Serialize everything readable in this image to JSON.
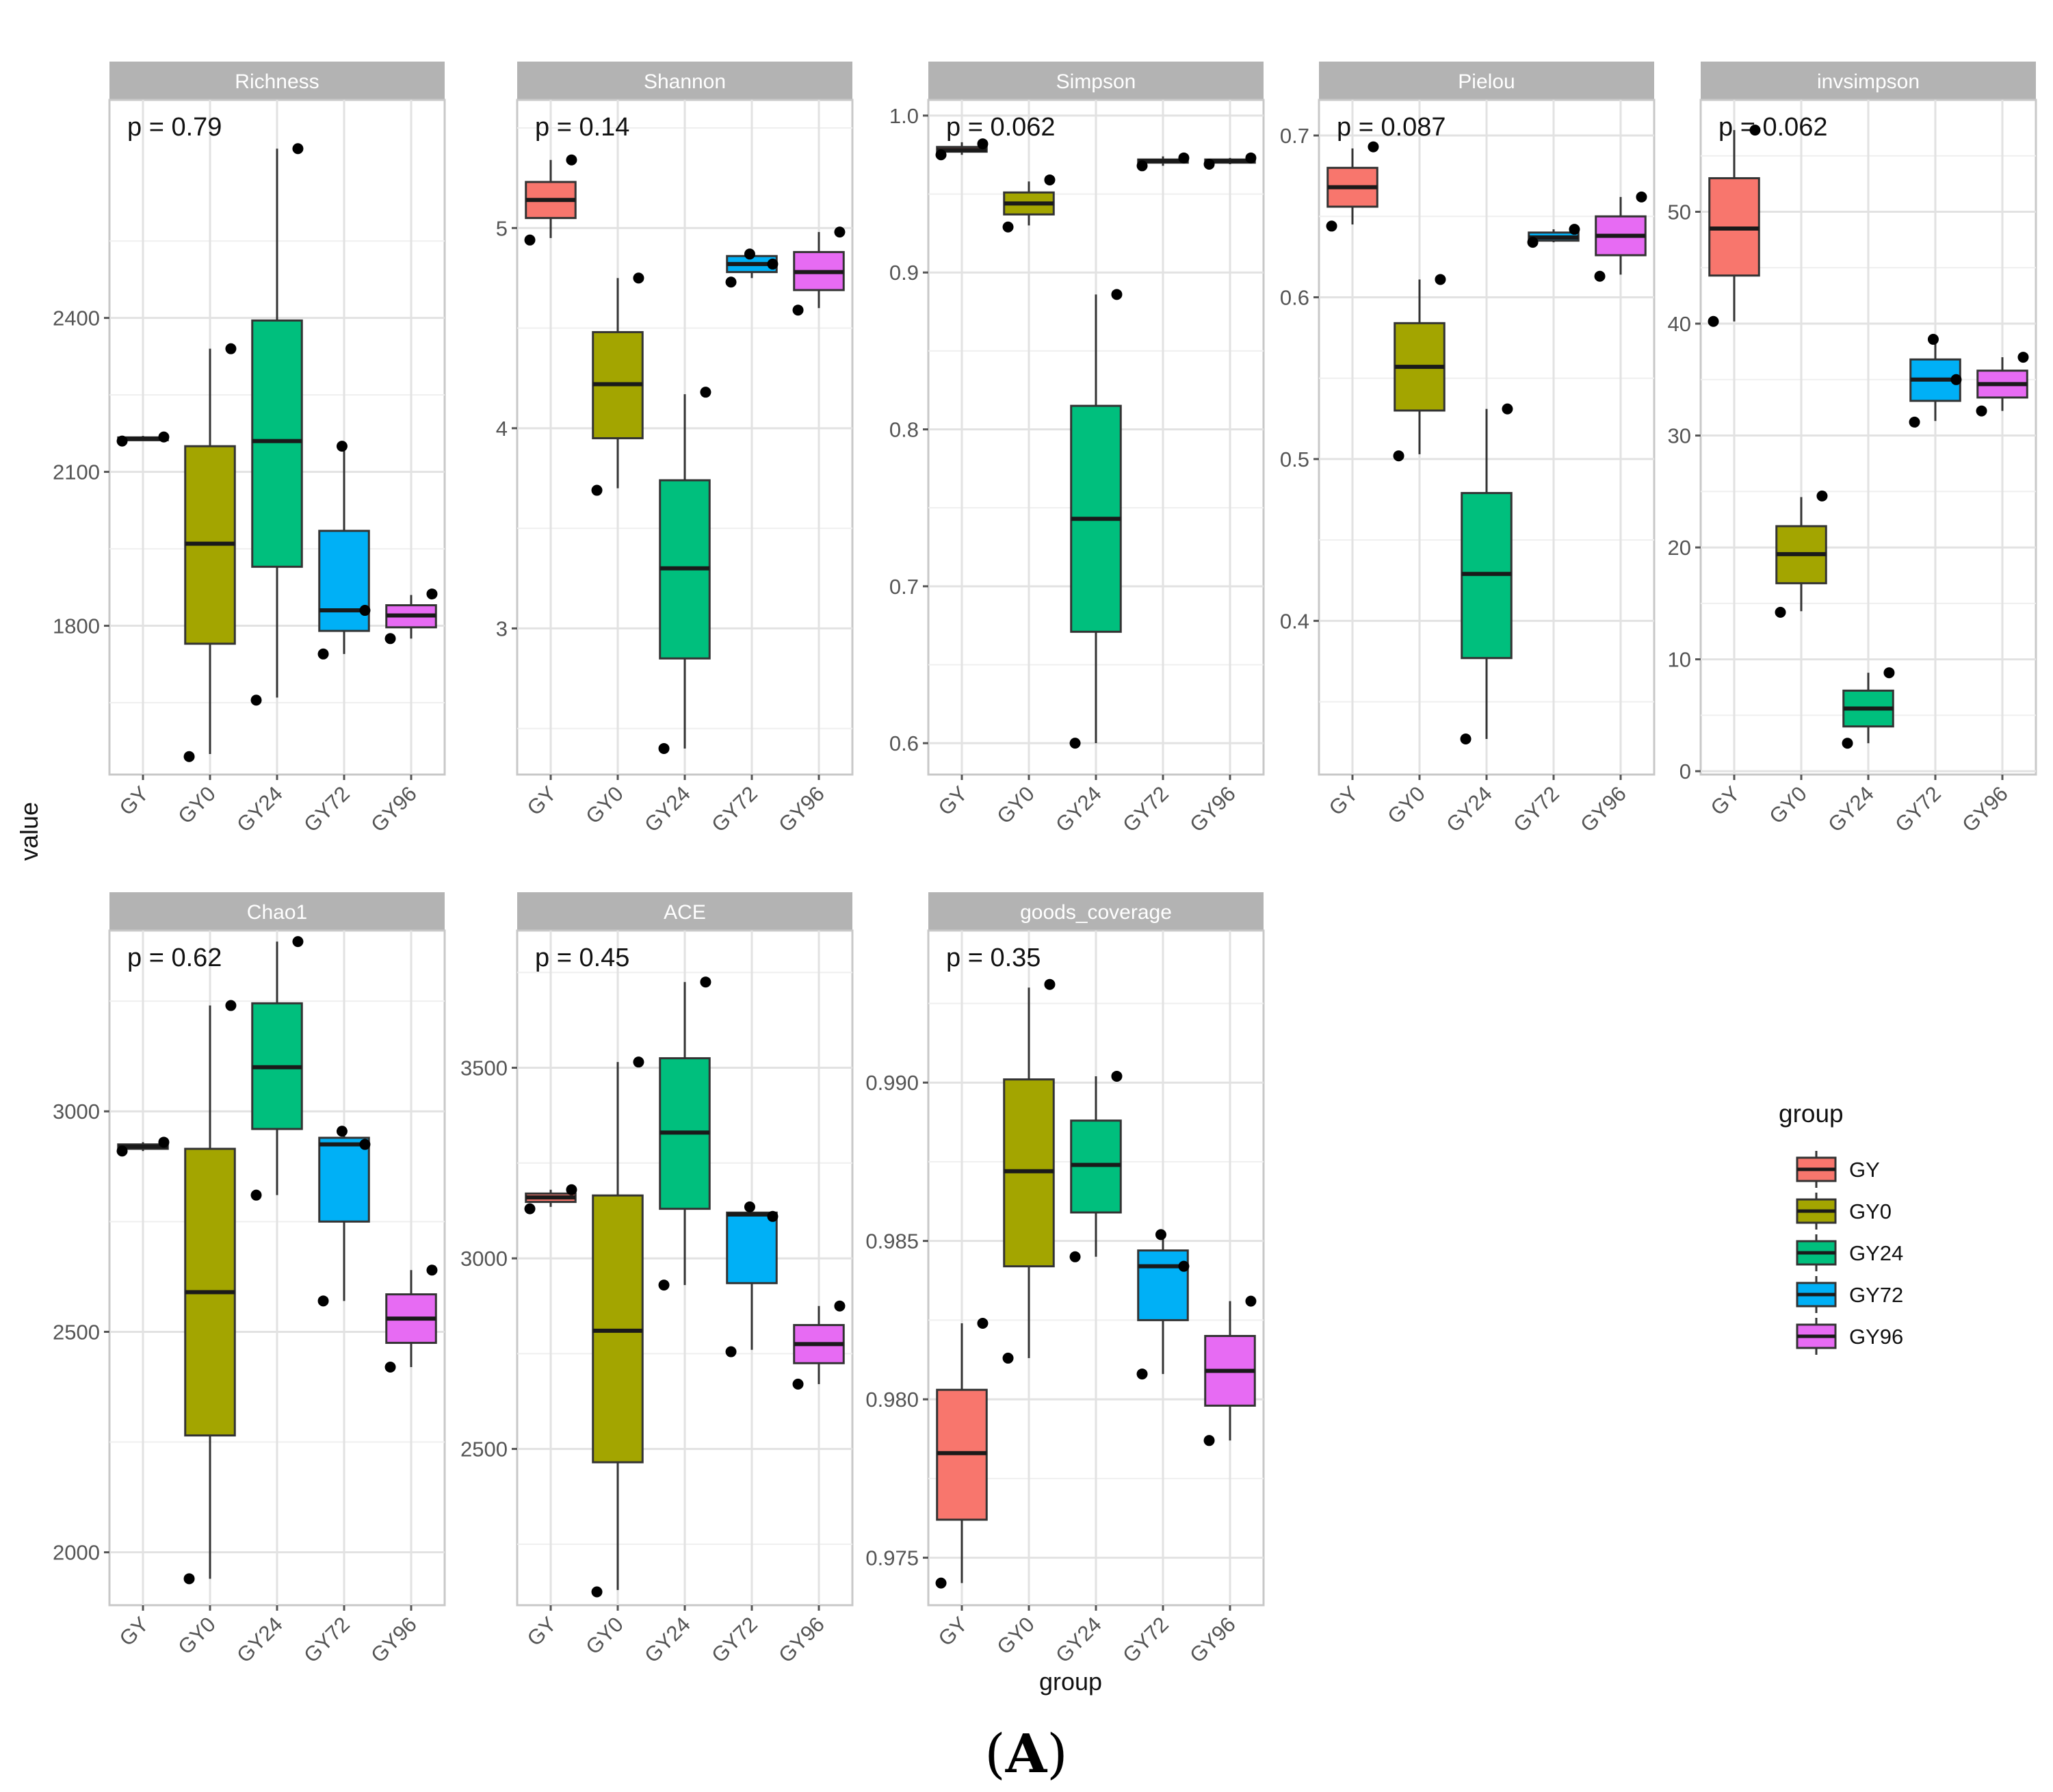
{
  "chart_data": {
    "type": "box",
    "ylabel": "value",
    "xlabel": "group",
    "caption": {
      "open": "(",
      "letter": "A",
      "close": ")"
    },
    "legend": {
      "title": "group",
      "placement": "right",
      "entries": [
        {
          "name": "GY",
          "color": "#F8766D"
        },
        {
          "name": "GY0",
          "color": "#A3A500"
        },
        {
          "name": "GY24",
          "color": "#00BF7D"
        },
        {
          "name": "GY72",
          "color": "#00B0F6"
        },
        {
          "name": "GY96",
          "color": "#E76BF3"
        }
      ]
    },
    "categories": [
      "GY",
      "GY0",
      "GY24",
      "GY72",
      "GY96"
    ],
    "panels": [
      {
        "title": "Richness",
        "p_label": "p = 0.79",
        "ylim": [
          1510,
          2825
        ],
        "ticks": [
          1800,
          2100,
          2400
        ],
        "tick_labels": [
          "1800",
          "2100",
          "2400"
        ],
        "boxes": [
          {
            "group": "GY",
            "min": 2165,
            "q1": 2165,
            "median": 2165,
            "q3": 2167,
            "max": 2170,
            "points": [
              2160,
              2168
            ]
          },
          {
            "group": "GY0",
            "min": 1550,
            "q1": 1765,
            "median": 1960,
            "q3": 2150,
            "max": 2340,
            "points": [
              1545,
              2340
            ]
          },
          {
            "group": "GY24",
            "min": 1660,
            "q1": 1915,
            "median": 2160,
            "q3": 2395,
            "max": 2730,
            "points": [
              1655,
              2730
            ]
          },
          {
            "group": "GY72",
            "min": 1745,
            "q1": 1790,
            "median": 1830,
            "q3": 1985,
            "max": 2150,
            "points": [
              1745,
              1830,
              2150
            ]
          },
          {
            "group": "GY96",
            "min": 1775,
            "q1": 1797,
            "median": 1820,
            "q3": 1840,
            "max": 1860,
            "points": [
              1775,
              1862
            ]
          }
        ]
      },
      {
        "title": "Shannon",
        "p_label": "p = 0.14",
        "ylim": [
          2.27,
          5.64
        ],
        "ticks": [
          3,
          4,
          5
        ],
        "tick_labels": [
          "3",
          "4",
          "5"
        ],
        "boxes": [
          {
            "group": "GY",
            "min": 4.95,
            "q1": 5.05,
            "median": 5.14,
            "q3": 5.23,
            "max": 5.34,
            "points": [
              4.94,
              5.34
            ]
          },
          {
            "group": "GY0",
            "min": 3.7,
            "q1": 3.95,
            "median": 4.22,
            "q3": 4.48,
            "max": 4.75,
            "points": [
              3.69,
              4.75
            ]
          },
          {
            "group": "GY24",
            "min": 2.4,
            "q1": 2.85,
            "median": 3.3,
            "q3": 3.74,
            "max": 4.17,
            "points": [
              2.4,
              4.18
            ]
          },
          {
            "group": "GY72",
            "min": 4.75,
            "q1": 4.78,
            "median": 4.82,
            "q3": 4.86,
            "max": 4.88,
            "points": [
              4.73,
              4.82,
              4.87
            ]
          },
          {
            "group": "GY96",
            "min": 4.6,
            "q1": 4.69,
            "median": 4.78,
            "q3": 4.88,
            "max": 4.98,
            "points": [
              4.59,
              4.98
            ]
          }
        ]
      },
      {
        "title": "Simpson",
        "p_label": "p = 0.062",
        "ylim": [
          0.58,
          1.01
        ],
        "ticks": [
          0.6,
          0.7,
          0.8,
          0.9,
          1.0
        ],
        "tick_labels": [
          "0.6",
          "0.7",
          "0.8",
          "0.9",
          "1.0"
        ],
        "boxes": [
          {
            "group": "GY",
            "min": 0.975,
            "q1": 0.977,
            "median": 0.978,
            "q3": 0.98,
            "max": 0.983,
            "points": [
              0.975,
              0.982
            ]
          },
          {
            "group": "GY0",
            "min": 0.93,
            "q1": 0.937,
            "median": 0.944,
            "q3": 0.951,
            "max": 0.958,
            "points": [
              0.929,
              0.959
            ]
          },
          {
            "group": "GY24",
            "min": 0.6,
            "q1": 0.671,
            "median": 0.743,
            "q3": 0.815,
            "max": 0.886,
            "points": [
              0.6,
              0.886
            ]
          },
          {
            "group": "GY72",
            "min": 0.968,
            "q1": 0.97,
            "median": 0.971,
            "q3": 0.972,
            "max": 0.974,
            "points": [
              0.968,
              0.973
            ]
          },
          {
            "group": "GY96",
            "min": 0.969,
            "q1": 0.97,
            "median": 0.971,
            "q3": 0.972,
            "max": 0.973,
            "points": [
              0.969,
              0.973
            ]
          }
        ]
      },
      {
        "title": "Pielou",
        "p_label": "p = 0.087",
        "ylim": [
          0.305,
          0.722
        ],
        "ticks": [
          0.4,
          0.5,
          0.6,
          0.7
        ],
        "tick_labels": [
          "0.4",
          "0.5",
          "0.6",
          "0.7"
        ],
        "boxes": [
          {
            "group": "GY",
            "min": 0.645,
            "q1": 0.656,
            "median": 0.668,
            "q3": 0.68,
            "max": 0.692,
            "points": [
              0.644,
              0.693
            ]
          },
          {
            "group": "GY0",
            "min": 0.503,
            "q1": 0.53,
            "median": 0.557,
            "q3": 0.584,
            "max": 0.611,
            "points": [
              0.502,
              0.611
            ]
          },
          {
            "group": "GY24",
            "min": 0.327,
            "q1": 0.377,
            "median": 0.429,
            "q3": 0.479,
            "max": 0.531,
            "points": [
              0.327,
              0.531
            ]
          },
          {
            "group": "GY72",
            "min": 0.634,
            "q1": 0.635,
            "median": 0.637,
            "q3": 0.64,
            "max": 0.642,
            "points": [
              0.634,
              0.642
            ]
          },
          {
            "group": "GY96",
            "min": 0.614,
            "q1": 0.626,
            "median": 0.638,
            "q3": 0.65,
            "max": 0.662,
            "points": [
              0.613,
              0.662
            ]
          }
        ]
      },
      {
        "title": "invsimpson",
        "p_label": "p = 0.062",
        "ylim": [
          -0.3,
          60
        ],
        "ticks": [
          0,
          10,
          20,
          30,
          40,
          50
        ],
        "tick_labels": [
          "0",
          "10",
          "20",
          "30",
          "40",
          "50"
        ],
        "boxes": [
          {
            "group": "GY",
            "min": 40.2,
            "q1": 44.3,
            "median": 48.5,
            "q3": 53.0,
            "max": 57.3,
            "points": [
              40.2,
              57.3
            ]
          },
          {
            "group": "GY0",
            "min": 14.3,
            "q1": 16.8,
            "median": 19.4,
            "q3": 21.9,
            "max": 24.5,
            "points": [
              14.2,
              24.6
            ]
          },
          {
            "group": "GY24",
            "min": 2.5,
            "q1": 4.0,
            "median": 5.6,
            "q3": 7.2,
            "max": 8.8,
            "points": [
              2.5,
              8.8
            ]
          },
          {
            "group": "GY72",
            "min": 31.3,
            "q1": 33.1,
            "median": 35.0,
            "q3": 36.8,
            "max": 38.6,
            "points": [
              31.2,
              35.0,
              38.6
            ]
          },
          {
            "group": "GY96",
            "min": 32.2,
            "q1": 33.4,
            "median": 34.6,
            "q3": 35.8,
            "max": 37.0,
            "points": [
              32.2,
              37.0
            ]
          }
        ]
      },
      {
        "title": "Chao1",
        "p_label": "p = 0.62",
        "ylim": [
          1880,
          3410
        ],
        "ticks": [
          2000,
          2500,
          3000
        ],
        "tick_labels": [
          "2000",
          "2500",
          "3000"
        ],
        "boxes": [
          {
            "group": "GY",
            "min": 2910,
            "q1": 2915,
            "median": 2920,
            "q3": 2925,
            "max": 2930,
            "points": [
              2910,
              2930
            ]
          },
          {
            "group": "GY0",
            "min": 1940,
            "q1": 2265,
            "median": 2590,
            "q3": 2915,
            "max": 3240,
            "points": [
              1940,
              3240
            ]
          },
          {
            "group": "GY24",
            "min": 2810,
            "q1": 2960,
            "median": 3100,
            "q3": 3245,
            "max": 3385,
            "points": [
              2810,
              3385
            ]
          },
          {
            "group": "GY72",
            "min": 2570,
            "q1": 2750,
            "median": 2925,
            "q3": 2940,
            "max": 2955,
            "points": [
              2570,
              2925,
              2955
            ]
          },
          {
            "group": "GY96",
            "min": 2420,
            "q1": 2475,
            "median": 2530,
            "q3": 2585,
            "max": 2640,
            "points": [
              2420,
              2640
            ]
          }
        ]
      },
      {
        "title": "ACE",
        "p_label": "p = 0.45",
        "ylim": [
          2090,
          3860
        ],
        "ticks": [
          2500,
          3000,
          3500
        ],
        "tick_labels": [
          "2500",
          "3000",
          "3500"
        ],
        "boxes": [
          {
            "group": "GY",
            "min": 3135,
            "q1": 3148,
            "median": 3160,
            "q3": 3170,
            "max": 3180,
            "points": [
              3130,
              3180
            ]
          },
          {
            "group": "GY0",
            "min": 2130,
            "q1": 2465,
            "median": 2810,
            "q3": 3165,
            "max": 3515,
            "points": [
              2125,
              3515
            ]
          },
          {
            "group": "GY24",
            "min": 2930,
            "q1": 3130,
            "median": 3330,
            "q3": 3525,
            "max": 3725,
            "points": [
              2930,
              3725
            ]
          },
          {
            "group": "GY72",
            "min": 2760,
            "q1": 2935,
            "median": 3115,
            "q3": 3120,
            "max": 3130,
            "points": [
              2755,
              3110,
              3135
            ]
          },
          {
            "group": "GY96",
            "min": 2670,
            "q1": 2725,
            "median": 2775,
            "q3": 2825,
            "max": 2875,
            "points": [
              2670,
              2875
            ]
          }
        ]
      },
      {
        "title": "goods_coverage",
        "p_label": "p = 0.35",
        "ylim": [
          0.9735,
          0.9948
        ],
        "ticks": [
          0.975,
          0.98,
          0.985,
          0.99
        ],
        "tick_labels": [
          "0.975",
          "0.980",
          "0.985",
          "0.990"
        ],
        "boxes": [
          {
            "group": "GY",
            "min": 0.9742,
            "q1": 0.9762,
            "median": 0.9783,
            "q3": 0.9803,
            "max": 0.9824,
            "points": [
              0.9742,
              0.9824
            ]
          },
          {
            "group": "GY0",
            "min": 0.9813,
            "q1": 0.9842,
            "median": 0.9872,
            "q3": 0.9901,
            "max": 0.993,
            "points": [
              0.9813,
              0.9931
            ]
          },
          {
            "group": "GY24",
            "min": 0.9845,
            "q1": 0.9859,
            "median": 0.9874,
            "q3": 0.9888,
            "max": 0.9902,
            "points": [
              0.9845,
              0.9902
            ]
          },
          {
            "group": "GY72",
            "min": 0.9808,
            "q1": 0.9825,
            "median": 0.9842,
            "q3": 0.9847,
            "max": 0.9852,
            "points": [
              0.9808,
              0.9842,
              0.9852
            ]
          },
          {
            "group": "GY96",
            "min": 0.9787,
            "q1": 0.9798,
            "median": 0.9809,
            "q3": 0.982,
            "max": 0.9831,
            "points": [
              0.9787,
              0.9831
            ]
          }
        ]
      }
    ]
  }
}
